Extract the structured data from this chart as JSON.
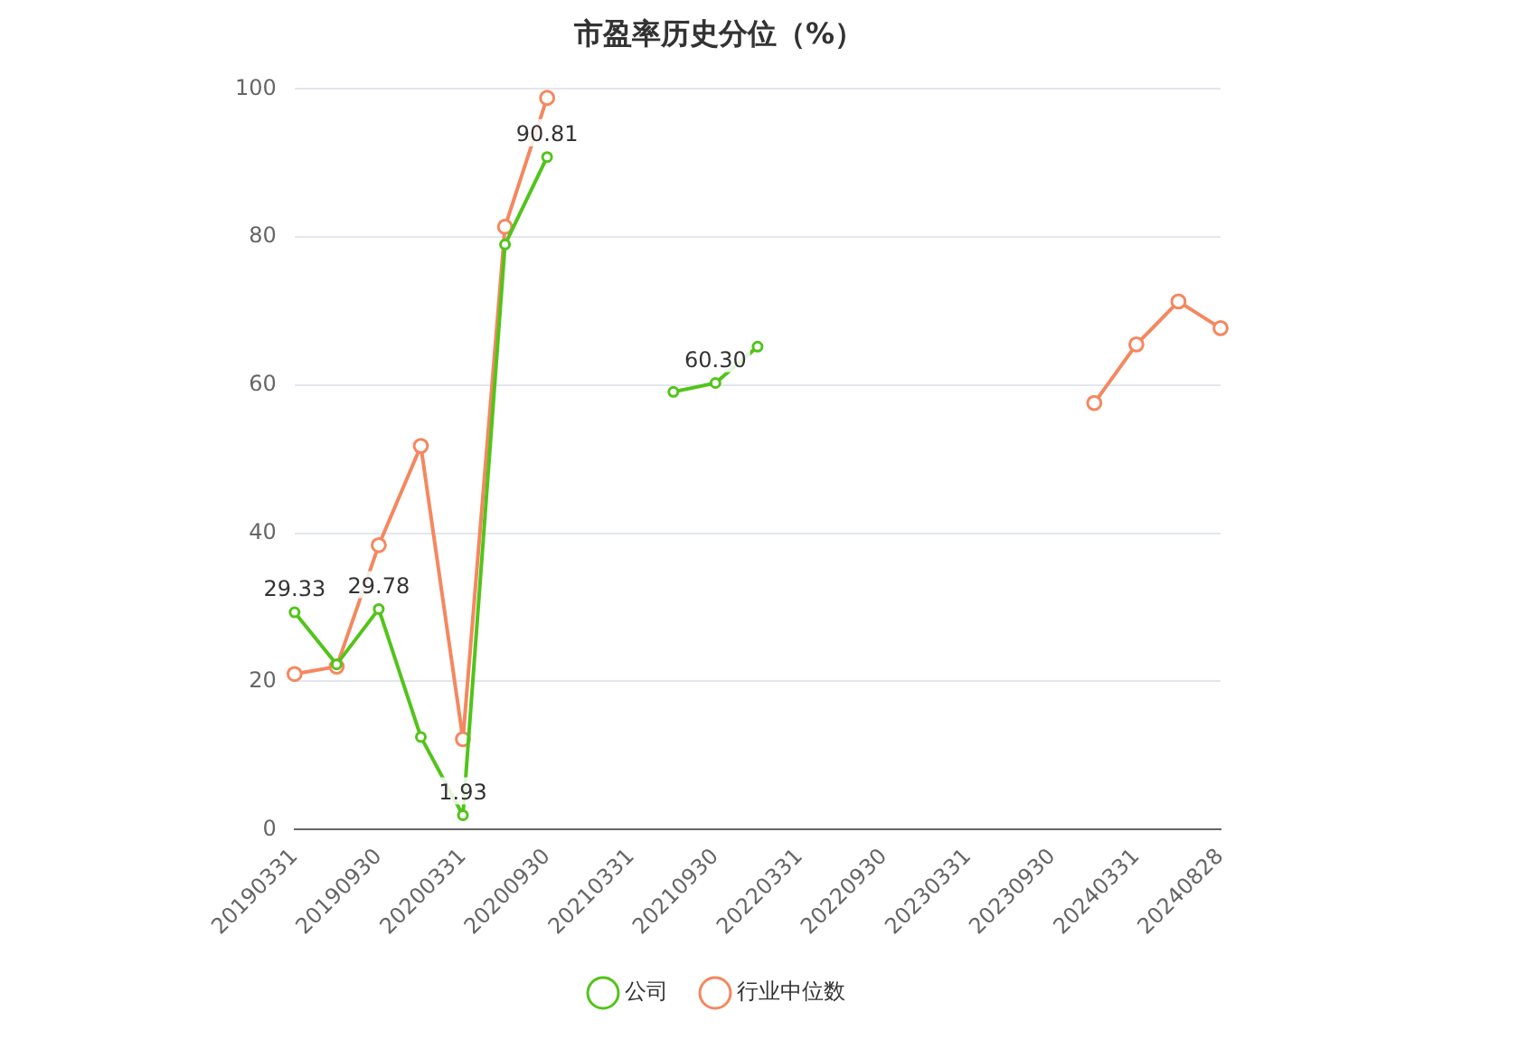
{
  "chart_data": {
    "type": "line",
    "title": "市盈率历史分位（%）",
    "categories": [
      "20190331",
      null,
      "20190930",
      null,
      "20200331",
      null,
      "20200930",
      null,
      "20210331",
      null,
      "20210930",
      null,
      "20220331",
      null,
      "20220930",
      null,
      "20230331",
      null,
      "20230930",
      null,
      "20240331",
      null,
      "20240828"
    ],
    "series": [
      {
        "name": "公司",
        "color": "#52c41a",
        "values": [
          29.33,
          22.3,
          29.78,
          12.5,
          1.93,
          79.0,
          90.81,
          null,
          null,
          59.1,
          60.3,
          65.2,
          null,
          null,
          null,
          null,
          null,
          null,
          null,
          null,
          null,
          null,
          null
        ],
        "value_labels": [
          "29.33",
          null,
          "29.78",
          null,
          "1.93",
          null,
          "90.81",
          null,
          null,
          null,
          "60.30",
          null,
          null,
          null,
          null,
          null,
          null,
          null,
          null,
          null,
          null,
          null,
          null
        ]
      },
      {
        "name": "行业中位数",
        "color": "#f5875f",
        "values": [
          21.0,
          22.0,
          38.4,
          51.8,
          12.2,
          81.4,
          98.8,
          null,
          null,
          null,
          null,
          null,
          null,
          null,
          null,
          null,
          null,
          null,
          null,
          57.6,
          65.5,
          71.3,
          67.7
        ]
      }
    ],
    "ylim": [
      0,
      100
    ],
    "yticks": [
      0,
      20,
      40,
      60,
      80,
      100
    ],
    "grid": "y",
    "legend": "bottom",
    "marker": "circle",
    "line_style": "solid"
  }
}
